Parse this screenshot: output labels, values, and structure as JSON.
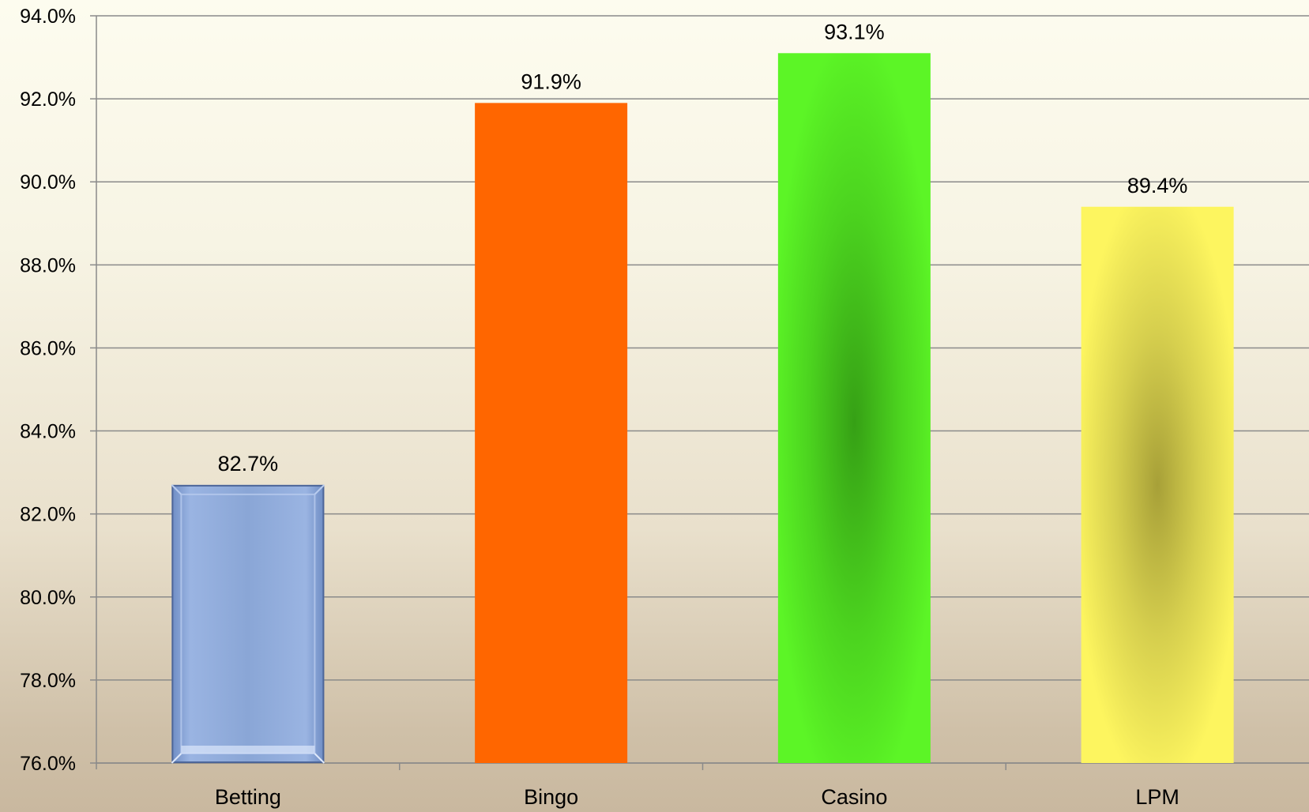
{
  "chart_data": {
    "type": "bar",
    "title": "",
    "xlabel": "",
    "ylabel": "",
    "categories": [
      "Betting",
      "Bingo",
      "Casino",
      "LPM"
    ],
    "values": [
      82.7,
      91.9,
      93.1,
      89.4
    ],
    "value_labels": [
      "82.7%",
      "91.9%",
      "93.1%",
      "89.4%"
    ],
    "ylim": [
      76.0,
      94.0
    ],
    "yticks": [
      76.0,
      78.0,
      80.0,
      82.0,
      84.0,
      86.0,
      88.0,
      90.0,
      92.0,
      94.0
    ],
    "ytick_labels": [
      "76.0%",
      "78.0%",
      "80.0%",
      "82.0%",
      "84.0%",
      "86.0%",
      "88.0%",
      "90.0%",
      "92.0%",
      "94.0%"
    ],
    "grid": true,
    "legend": "none",
    "colors": [
      "#8aa6d6",
      "#ff6600",
      "#5cf526",
      "#fdf55f"
    ]
  }
}
